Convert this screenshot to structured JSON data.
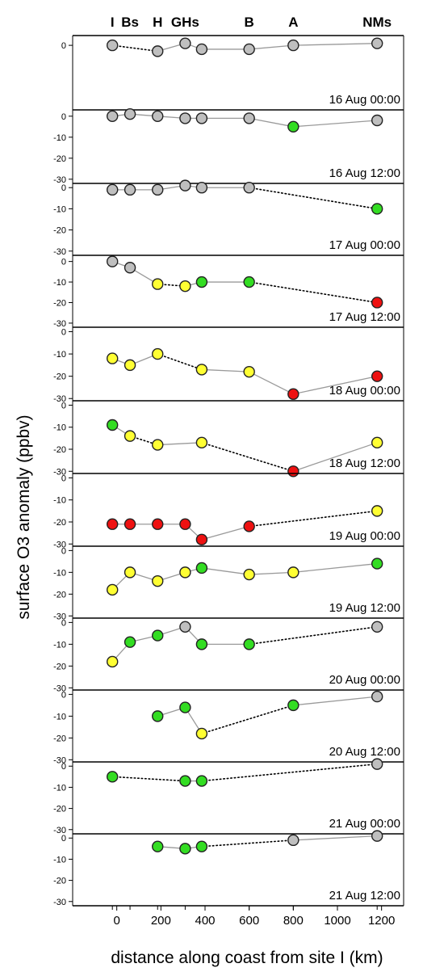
{
  "chart_data": {
    "type": "scatter",
    "ylabel": "surface O3 anomaly (ppbv)",
    "xlabel": "distance along coast from site I (km)",
    "xlim": [
      -200,
      1300
    ],
    "xticks": [
      "0",
      "200",
      "400",
      "600",
      "800",
      "1000",
      "1200"
    ],
    "sites": [
      {
        "name": "I",
        "x": -20
      },
      {
        "name": "Bs",
        "x": 60
      },
      {
        "name": "H",
        "x": 185
      },
      {
        "name": "GHs",
        "x": 310
      },
      {
        "name": "B",
        "x": 600
      },
      {
        "name": "A",
        "x": 800
      },
      {
        "name": "NMs",
        "x": 1180
      }
    ],
    "colors": {
      "grey": "#bfbfbf",
      "green": "#33dd22",
      "yellow": "#ffff33",
      "red": "#ee1111"
    },
    "panels": [
      {
        "label": "16 Aug 00:00",
        "ylim": [
          -33,
          5
        ],
        "yticks": [
          "0"
        ],
        "points": [
          {
            "x": -20,
            "y": 0,
            "c": "grey"
          },
          {
            "x": 185,
            "y": -3,
            "c": "grey"
          },
          {
            "x": 310,
            "y": 1,
            "c": "grey"
          },
          {
            "x": 385,
            "y": -2,
            "c": "grey"
          },
          {
            "x": 600,
            "y": -2,
            "c": "grey"
          },
          {
            "x": 800,
            "y": 0,
            "c": "grey"
          },
          {
            "x": 1180,
            "y": 1,
            "c": "grey"
          }
        ],
        "links": [
          "dotted",
          "solid",
          "solid",
          "solid",
          "solid",
          "solid"
        ]
      },
      {
        "label": "16 Aug 12:00",
        "ylim": [
          -32,
          3
        ],
        "yticks": [
          "0",
          "-10",
          "-20",
          "-30"
        ],
        "points": [
          {
            "x": -20,
            "y": 0,
            "c": "grey"
          },
          {
            "x": 60,
            "y": 1,
            "c": "grey"
          },
          {
            "x": 185,
            "y": 0,
            "c": "grey"
          },
          {
            "x": 310,
            "y": -1,
            "c": "grey"
          },
          {
            "x": 385,
            "y": -1,
            "c": "grey"
          },
          {
            "x": 600,
            "y": -1,
            "c": "grey"
          },
          {
            "x": 800,
            "y": -5,
            "c": "green"
          },
          {
            "x": 1180,
            "y": -2,
            "c": "grey"
          }
        ],
        "links": [
          "solid",
          "solid",
          "solid",
          "solid",
          "solid",
          "solid",
          "solid"
        ]
      },
      {
        "label": "17 Aug 00:00",
        "ylim": [
          -32,
          2
        ],
        "yticks": [
          "0",
          "-10",
          "-20",
          "-30"
        ],
        "points": [
          {
            "x": -20,
            "y": -1,
            "c": "grey"
          },
          {
            "x": 60,
            "y": -1,
            "c": "grey"
          },
          {
            "x": 185,
            "y": -1,
            "c": "grey"
          },
          {
            "x": 310,
            "y": 1,
            "c": "grey"
          },
          {
            "x": 385,
            "y": 0,
            "c": "grey"
          },
          {
            "x": 600,
            "y": 0,
            "c": "grey"
          },
          {
            "x": 1180,
            "y": -10,
            "c": "green"
          }
        ],
        "links": [
          "solid",
          "solid",
          "solid",
          "solid",
          "solid",
          "dotted"
        ]
      },
      {
        "label": "17 Aug 12:00",
        "ylim": [
          -32,
          3
        ],
        "yticks": [
          "0",
          "-10",
          "-20",
          "-30"
        ],
        "points": [
          {
            "x": -20,
            "y": 0,
            "c": "grey"
          },
          {
            "x": 60,
            "y": -3,
            "c": "grey"
          },
          {
            "x": 185,
            "y": -11,
            "c": "yellow"
          },
          {
            "x": 310,
            "y": -12,
            "c": "yellow"
          },
          {
            "x": 385,
            "y": -10,
            "c": "green"
          },
          {
            "x": 600,
            "y": -10,
            "c": "green"
          },
          {
            "x": 1180,
            "y": -20,
            "c": "red"
          }
        ],
        "links": [
          "solid",
          "solid",
          "dotted",
          "solid",
          "solid",
          "dotted"
        ]
      },
      {
        "label": "18 Aug 00:00",
        "ylim": [
          -31,
          2
        ],
        "yticks": [
          "0",
          "-10",
          "-20",
          "-30"
        ],
        "points": [
          {
            "x": -20,
            "y": -12,
            "c": "yellow"
          },
          {
            "x": 60,
            "y": -15,
            "c": "yellow"
          },
          {
            "x": 185,
            "y": -10,
            "c": "yellow"
          },
          {
            "x": 385,
            "y": -17,
            "c": "yellow"
          },
          {
            "x": 600,
            "y": -18,
            "c": "yellow"
          },
          {
            "x": 800,
            "y": -28,
            "c": "red"
          },
          {
            "x": 1180,
            "y": -20,
            "c": "red"
          }
        ],
        "links": [
          "solid",
          "solid",
          "dotted",
          "solid",
          "solid",
          "solid"
        ]
      },
      {
        "label": "18 Aug 12:00",
        "ylim": [
          -31,
          2
        ],
        "yticks": [
          "0",
          "-10",
          "-20",
          "-30"
        ],
        "points": [
          {
            "x": -20,
            "y": -9,
            "c": "green"
          },
          {
            "x": 60,
            "y": -14,
            "c": "yellow"
          },
          {
            "x": 185,
            "y": -18,
            "c": "yellow"
          },
          {
            "x": 385,
            "y": -17,
            "c": "yellow"
          },
          {
            "x": 800,
            "y": -30,
            "c": "red"
          },
          {
            "x": 1180,
            "y": -17,
            "c": "yellow"
          }
        ],
        "links": [
          "solid",
          "dotted",
          "solid",
          "dotted",
          "solid"
        ]
      },
      {
        "label": "19 Aug 00:00",
        "ylim": [
          -31,
          2
        ],
        "yticks": [
          "0",
          "-10",
          "-20",
          "-30"
        ],
        "points": [
          {
            "x": -20,
            "y": -21,
            "c": "red"
          },
          {
            "x": 60,
            "y": -21,
            "c": "red"
          },
          {
            "x": 185,
            "y": -21,
            "c": "red"
          },
          {
            "x": 310,
            "y": -21,
            "c": "red"
          },
          {
            "x": 385,
            "y": -28,
            "c": "red"
          },
          {
            "x": 600,
            "y": -22,
            "c": "red"
          },
          {
            "x": 1180,
            "y": -15,
            "c": "yellow"
          }
        ],
        "links": [
          "solid",
          "solid",
          "solid",
          "solid",
          "solid",
          "dotted"
        ]
      },
      {
        "label": "19 Aug 12:00",
        "ylim": [
          -31,
          2
        ],
        "yticks": [
          "0",
          "-10",
          "-20",
          "-30"
        ],
        "points": [
          {
            "x": -20,
            "y": -18,
            "c": "yellow"
          },
          {
            "x": 60,
            "y": -10,
            "c": "yellow"
          },
          {
            "x": 185,
            "y": -14,
            "c": "yellow"
          },
          {
            "x": 310,
            "y": -10,
            "c": "yellow"
          },
          {
            "x": 385,
            "y": -8,
            "c": "green"
          },
          {
            "x": 600,
            "y": -11,
            "c": "yellow"
          },
          {
            "x": 800,
            "y": -10,
            "c": "yellow"
          },
          {
            "x": 1180,
            "y": -6,
            "c": "green"
          }
        ],
        "links": [
          "solid",
          "solid",
          "solid",
          "solid",
          "solid",
          "solid",
          "solid"
        ]
      },
      {
        "label": "20 Aug 00:00",
        "ylim": [
          -31,
          2
        ],
        "yticks": [
          "0",
          "-10",
          "-20",
          "-30"
        ],
        "points": [
          {
            "x": -20,
            "y": -18,
            "c": "yellow"
          },
          {
            "x": 60,
            "y": -9,
            "c": "green"
          },
          {
            "x": 185,
            "y": -6,
            "c": "green"
          },
          {
            "x": 310,
            "y": -2,
            "c": "grey"
          },
          {
            "x": 385,
            "y": -10,
            "c": "green"
          },
          {
            "x": 600,
            "y": -10,
            "c": "green"
          },
          {
            "x": 1180,
            "y": -2,
            "c": "grey"
          }
        ],
        "links": [
          "solid",
          "solid",
          "solid",
          "solid",
          "solid",
          "dotted"
        ]
      },
      {
        "label": "20 Aug 12:00",
        "ylim": [
          -31,
          2
        ],
        "yticks": [
          "0",
          "-10",
          "-20",
          "-30"
        ],
        "points": [
          {
            "x": 185,
            "y": -10,
            "c": "green"
          },
          {
            "x": 310,
            "y": -6,
            "c": "green"
          },
          {
            "x": 385,
            "y": -18,
            "c": "yellow"
          },
          {
            "x": 800,
            "y": -5,
            "c": "green"
          },
          {
            "x": 1180,
            "y": -1,
            "c": "grey"
          }
        ],
        "links": [
          "solid",
          "solid",
          "dotted",
          "solid"
        ]
      },
      {
        "label": "21 Aug 00:00",
        "ylim": [
          -32,
          2
        ],
        "yticks": [
          "0",
          "-10",
          "-20",
          "-30"
        ],
        "points": [
          {
            "x": -20,
            "y": -5,
            "c": "green"
          },
          {
            "x": 310,
            "y": -7,
            "c": "green"
          },
          {
            "x": 385,
            "y": -7,
            "c": "green"
          },
          {
            "x": 1180,
            "y": 1,
            "c": "grey"
          }
        ],
        "links": [
          "dotted",
          "solid",
          "dotted"
        ]
      },
      {
        "label": "21 Aug 12:00",
        "ylim": [
          -32,
          2
        ],
        "yticks": [
          "0",
          "-10",
          "-20",
          "-30"
        ],
        "points": [
          {
            "x": 185,
            "y": -4,
            "c": "green"
          },
          {
            "x": 310,
            "y": -5,
            "c": "green"
          },
          {
            "x": 385,
            "y": -4,
            "c": "green"
          },
          {
            "x": 800,
            "y": -1,
            "c": "grey"
          },
          {
            "x": 1180,
            "y": 1,
            "c": "grey"
          }
        ],
        "links": [
          "solid",
          "solid",
          "dotted",
          "solid"
        ]
      }
    ]
  }
}
